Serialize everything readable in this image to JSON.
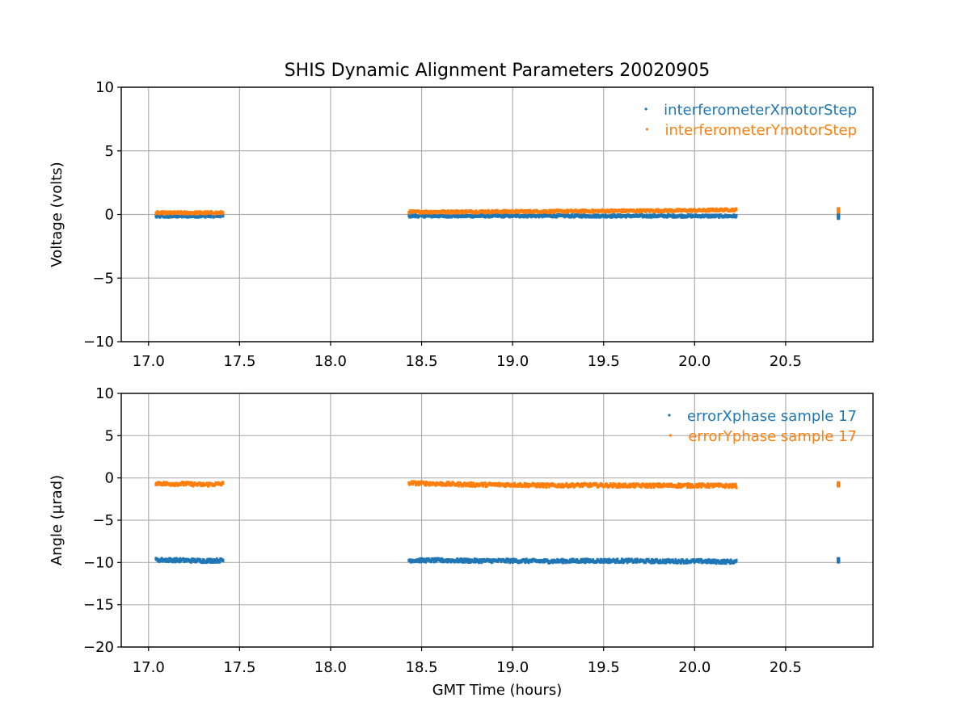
{
  "chart_data": [
    {
      "type": "scatter",
      "title": "SHIS Dynamic Alignment Parameters 20020905",
      "xlabel": "",
      "ylabel": "Voltage (volts)",
      "xlim": [
        16.85,
        20.98
      ],
      "ylim": [
        -10,
        10
      ],
      "xticks": [
        17.0,
        17.5,
        18.0,
        18.5,
        19.0,
        19.5,
        20.0,
        20.5
      ],
      "xtick_labels": [
        "17.0",
        "17.5",
        "18.0",
        "18.5",
        "19.0",
        "19.5",
        "20.0",
        "20.5"
      ],
      "yticks": [
        10,
        5,
        0,
        -5,
        -10
      ],
      "ytick_labels": [
        "10",
        "5",
        "0",
        "−5",
        "−10"
      ],
      "grid": true,
      "legend_position": "top-right",
      "series": [
        {
          "name": "interferometerXmotorStep",
          "color": "#1f77b4",
          "points": [
            [
              17.04,
              -0.15
            ],
            [
              17.1,
              -0.14
            ],
            [
              17.2,
              -0.13
            ],
            [
              17.3,
              -0.12
            ],
            [
              17.41,
              -0.12
            ],
            [
              18.43,
              -0.12
            ],
            [
              18.6,
              -0.12
            ],
            [
              18.8,
              -0.12
            ],
            [
              19.0,
              -0.11
            ],
            [
              19.2,
              -0.11
            ],
            [
              19.4,
              -0.12
            ],
            [
              19.6,
              -0.12
            ],
            [
              19.8,
              -0.12
            ],
            [
              20.06,
              -0.12
            ],
            [
              20.1,
              -0.13
            ],
            [
              20.23,
              -0.13
            ],
            [
              20.79,
              -0.14
            ]
          ]
        },
        {
          "name": "interferometerYmotorStep",
          "color": "#ff7f0e",
          "points": [
            [
              17.04,
              0.12
            ],
            [
              17.1,
              0.12
            ],
            [
              17.2,
              0.13
            ],
            [
              17.3,
              0.13
            ],
            [
              17.41,
              0.13
            ],
            [
              18.43,
              0.2
            ],
            [
              18.6,
              0.2
            ],
            [
              18.8,
              0.22
            ],
            [
              19.0,
              0.23
            ],
            [
              19.2,
              0.24
            ],
            [
              19.4,
              0.26
            ],
            [
              19.6,
              0.28
            ],
            [
              19.8,
              0.3
            ],
            [
              20.06,
              0.32
            ],
            [
              20.1,
              0.35
            ],
            [
              20.23,
              0.36
            ],
            [
              20.79,
              0.36
            ]
          ]
        }
      ]
    },
    {
      "type": "scatter",
      "title": "",
      "xlabel": "GMT Time (hours)",
      "ylabel": "Angle (μrad)",
      "xlim": [
        16.85,
        20.98
      ],
      "ylim": [
        -20,
        10
      ],
      "xticks": [
        17.0,
        17.5,
        18.0,
        18.5,
        19.0,
        19.5,
        20.0,
        20.5
      ],
      "xtick_labels": [
        "17.0",
        "17.5",
        "18.0",
        "18.5",
        "19.0",
        "19.5",
        "20.0",
        "20.5"
      ],
      "yticks": [
        10,
        5,
        0,
        -5,
        -10,
        -15,
        -20
      ],
      "ytick_labels": [
        "10",
        "5",
        "0",
        "−5",
        "−10",
        "−15",
        "−20"
      ],
      "grid": true,
      "legend_position": "top-right",
      "series": [
        {
          "name": "errorXphase sample 17",
          "color": "#1f77b4",
          "points": [
            [
              17.04,
              -9.7
            ],
            [
              17.1,
              -9.7
            ],
            [
              17.2,
              -9.75
            ],
            [
              17.3,
              -9.8
            ],
            [
              17.41,
              -9.75
            ],
            [
              18.43,
              -9.75
            ],
            [
              18.6,
              -9.75
            ],
            [
              18.8,
              -9.8
            ],
            [
              19.0,
              -9.8
            ],
            [
              19.2,
              -9.85
            ],
            [
              19.4,
              -9.8
            ],
            [
              19.6,
              -9.8
            ],
            [
              19.8,
              -9.85
            ],
            [
              20.06,
              -9.85
            ],
            [
              20.1,
              -9.9
            ],
            [
              20.23,
              -9.9
            ],
            [
              20.79,
              -9.75
            ]
          ]
        },
        {
          "name": "errorYphase sample 17",
          "color": "#ff7f0e",
          "points": [
            [
              17.04,
              -0.6
            ],
            [
              17.1,
              -0.7
            ],
            [
              17.2,
              -0.7
            ],
            [
              17.3,
              -0.8
            ],
            [
              17.41,
              -0.7
            ],
            [
              18.43,
              -0.6
            ],
            [
              18.6,
              -0.7
            ],
            [
              18.8,
              -0.8
            ],
            [
              19.0,
              -0.8
            ],
            [
              19.2,
              -0.9
            ],
            [
              19.4,
              -0.85
            ],
            [
              19.6,
              -0.9
            ],
            [
              19.8,
              -0.9
            ],
            [
              20.06,
              -0.9
            ],
            [
              20.1,
              -0.9
            ],
            [
              20.23,
              -0.95
            ],
            [
              20.79,
              -0.75
            ]
          ]
        }
      ]
    }
  ]
}
